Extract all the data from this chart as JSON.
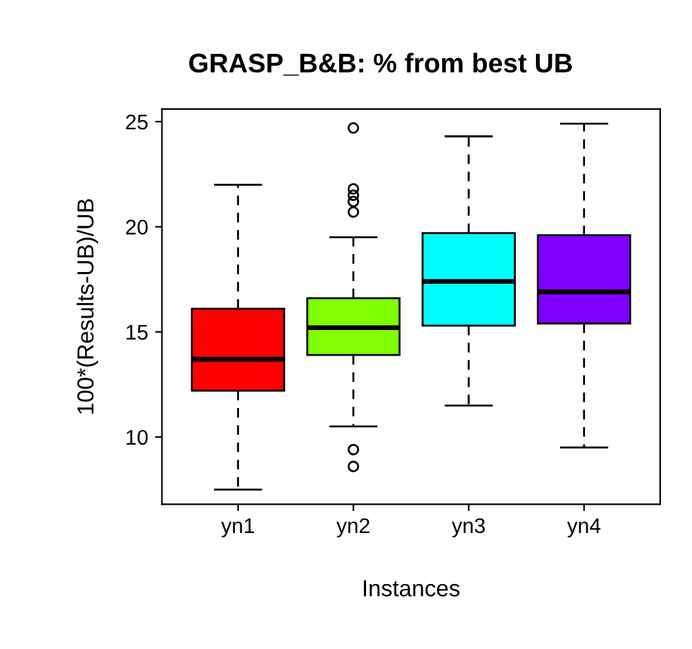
{
  "chart_data": {
    "type": "box",
    "title": "GRASP_B&B: % from best UB",
    "xlabel": "Instances",
    "ylabel": "100*(Results-UB)/UB",
    "categories": [
      "yn1",
      "yn2",
      "yn3",
      "yn4"
    ],
    "colors": [
      "#ff0000",
      "#80ff00",
      "#00ffff",
      "#8000ff"
    ],
    "boxes": [
      {
        "low": 7.5,
        "q1": 12.2,
        "median": 13.7,
        "q3": 16.1,
        "high": 22.0
      },
      {
        "low": 10.5,
        "q1": 13.9,
        "median": 15.2,
        "q3": 16.6,
        "high": 19.5,
        "outliers": [
          24.7,
          21.8,
          21.5,
          21.2,
          20.7,
          9.4,
          8.6
        ]
      },
      {
        "low": 11.5,
        "q1": 15.3,
        "median": 17.4,
        "q3": 19.7,
        "high": 24.3
      },
      {
        "low": 9.5,
        "q1": 15.4,
        "median": 16.9,
        "q3": 19.6,
        "high": 24.9
      }
    ],
    "ylim": [
      6.8,
      25.6
    ],
    "yticks": [
      10,
      15,
      20,
      25
    ],
    "grid": false
  }
}
